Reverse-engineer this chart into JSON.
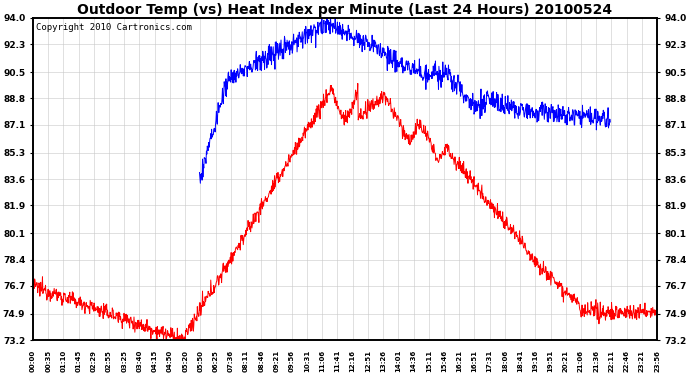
{
  "title": "Outdoor Temp (vs) Heat Index per Minute (Last 24 Hours) 20100524",
  "copyright_text": "Copyright 2010 Cartronics.com",
  "yticks": [
    73.2,
    74.9,
    76.7,
    78.4,
    80.1,
    81.9,
    83.6,
    85.3,
    87.1,
    88.8,
    90.5,
    92.3,
    94.0
  ],
  "ymin": 73.2,
  "ymax": 94.0,
  "x_tick_labels": [
    "00:00",
    "00:35",
    "01:10",
    "01:45",
    "02:29",
    "02:55",
    "03:25",
    "03:40",
    "04:15",
    "04:50",
    "05:20",
    "05:50",
    "06:25",
    "07:36",
    "08:11",
    "08:46",
    "09:21",
    "09:56",
    "10:31",
    "11:06",
    "11:41",
    "12:16",
    "12:51",
    "13:26",
    "14:01",
    "14:36",
    "15:11",
    "15:46",
    "16:21",
    "16:51",
    "17:31",
    "18:06",
    "18:41",
    "19:16",
    "19:51",
    "20:21",
    "21:06",
    "21:36",
    "22:11",
    "22:46",
    "23:21",
    "23:56"
  ],
  "background_color": "#ffffff",
  "plot_bg_color": "#ffffff",
  "grid_color": "#c8c8c8",
  "line_color_red": "#ff0000",
  "line_color_blue": "#0000ff",
  "title_fontsize": 10,
  "copyright_fontsize": 6.5
}
